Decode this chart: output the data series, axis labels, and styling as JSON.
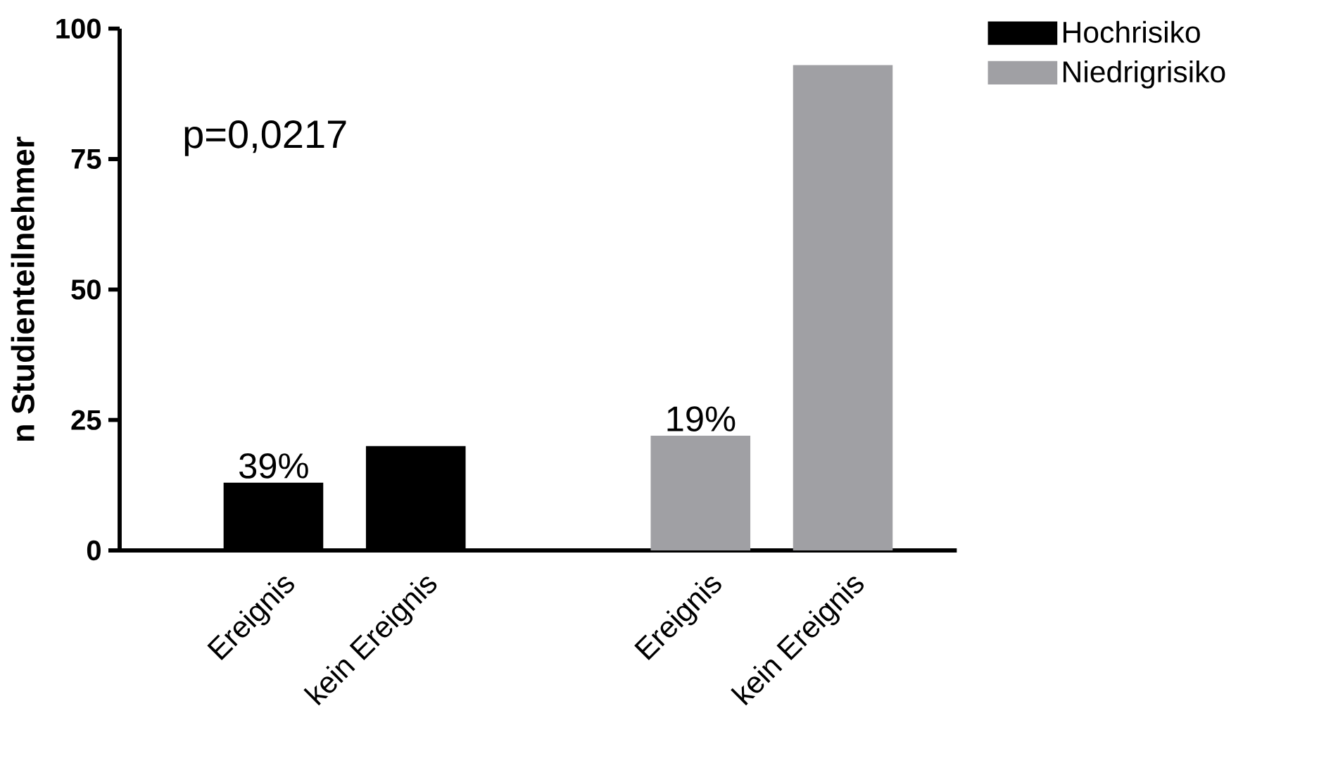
{
  "chart_data": {
    "type": "bar",
    "ylabel": "n Studienteilnehmer",
    "categories": [
      "Ereignis",
      "kein Ereignis",
      null,
      "Ereignis",
      "kein Ereignis"
    ],
    "series": [
      {
        "name": "Hochrisiko",
        "color": "#000000",
        "values": [
          13,
          20,
          null,
          null,
          null
        ]
      },
      {
        "name": "Niedrigrisiko",
        "color": "#a0a0a4",
        "values": [
          null,
          null,
          null,
          22,
          93
        ]
      }
    ],
    "ylim": [
      0,
      100
    ],
    "yticks": [
      0,
      25,
      50,
      75,
      100
    ],
    "grid": false,
    "legend": "top right",
    "annotations": [
      "p=0,0217",
      "39%",
      "19%"
    ]
  }
}
